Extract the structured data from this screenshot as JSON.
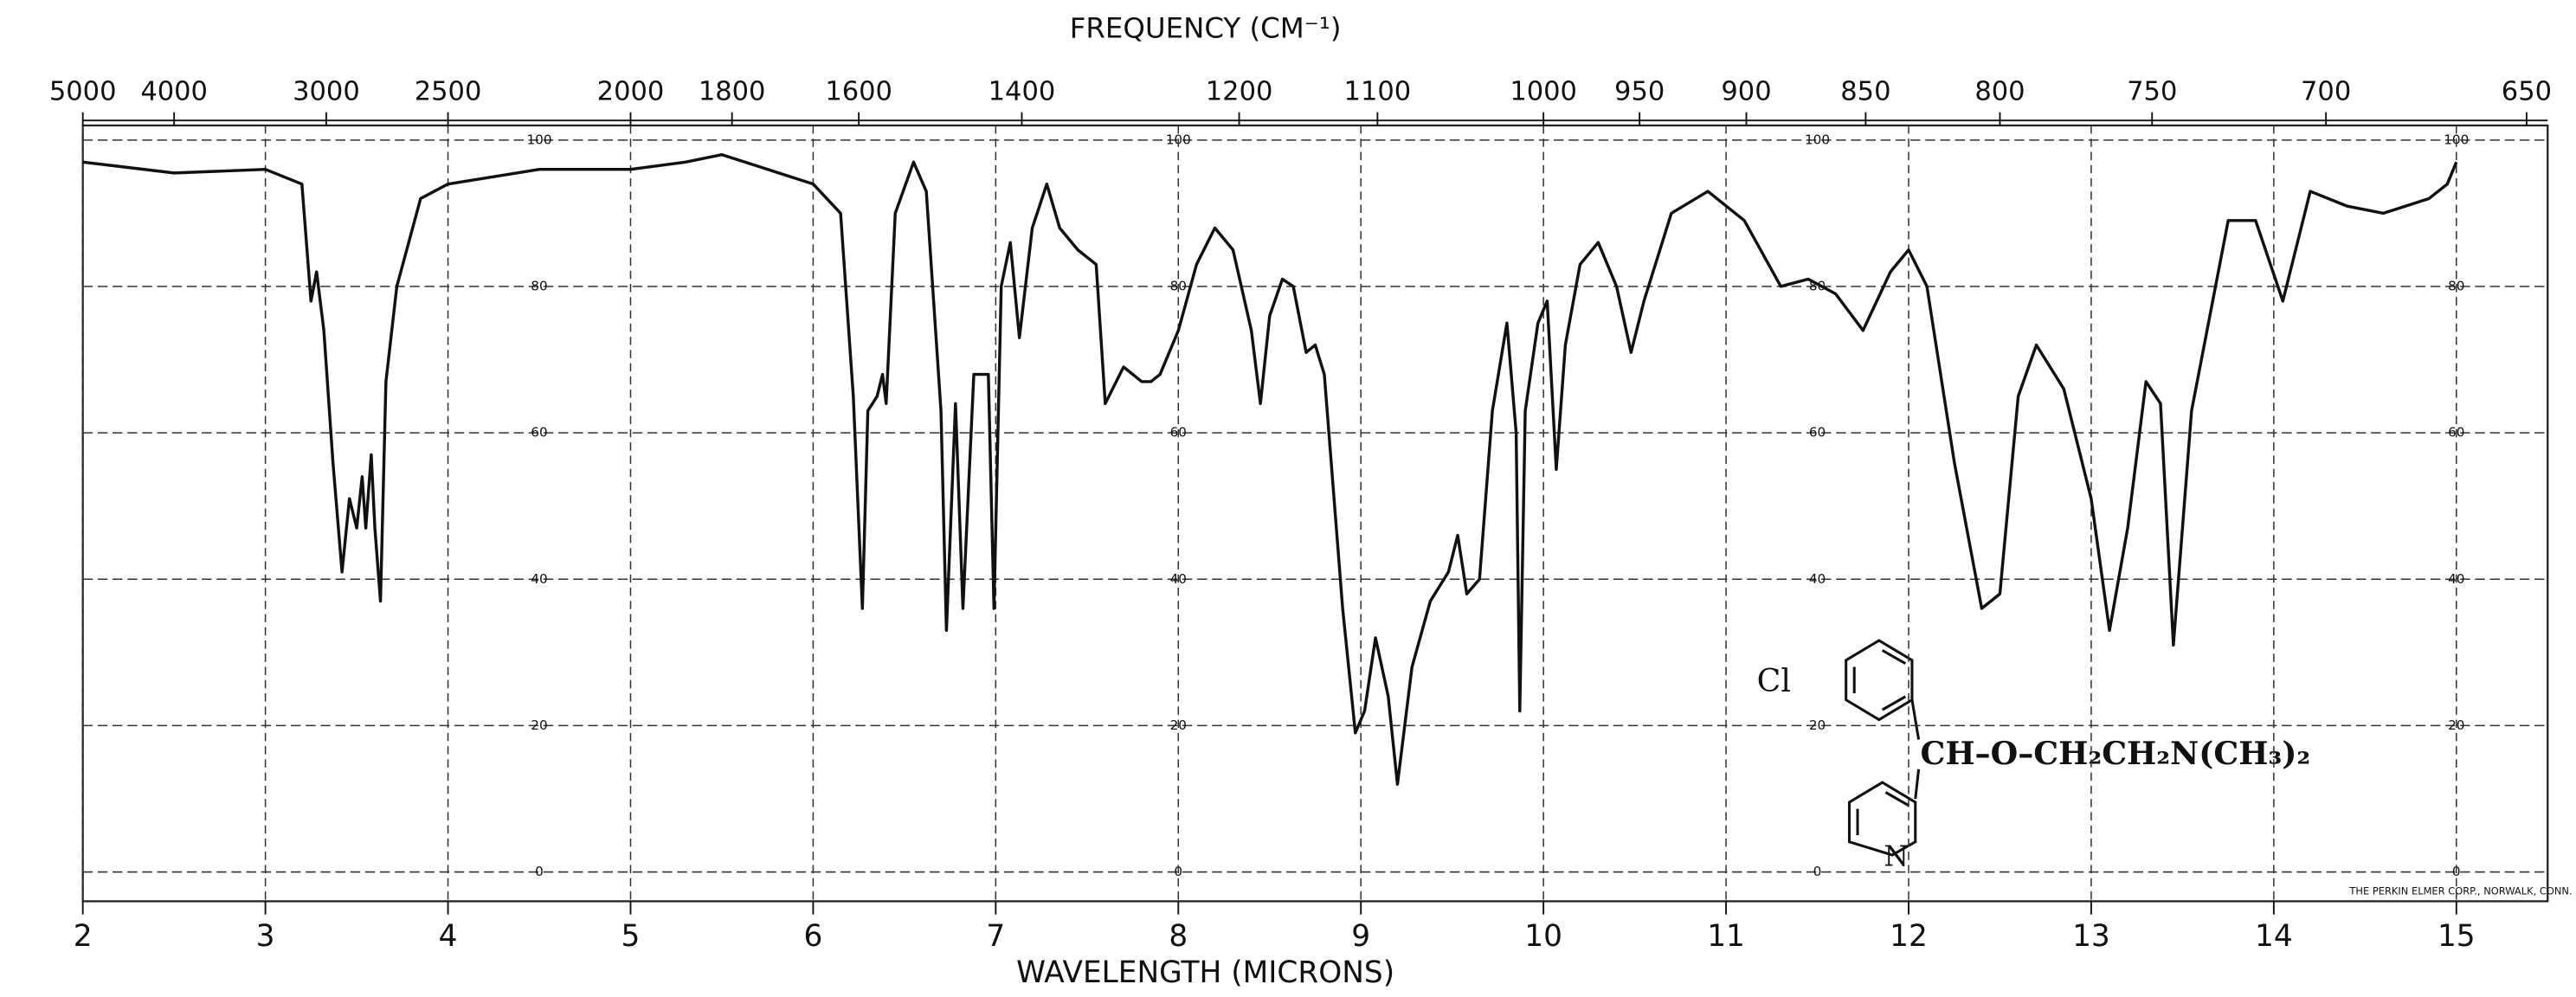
{
  "chart_data": {
    "type": "line",
    "title": "FREQUENCY (CM⁻¹)",
    "x_label": "WAVELENGTH (MICRONS)",
    "xlim": [
      2,
      15.5
    ],
    "xticks": [
      2,
      3,
      4,
      5,
      6,
      7,
      8,
      9,
      10,
      11,
      12,
      13,
      14,
      15
    ],
    "x2lim": [
      5000,
      645.2
    ],
    "x2ticks": [
      5000,
      4000,
      3000,
      2500,
      2000,
      1800,
      1600,
      1400,
      1200,
      1100,
      1000,
      950,
      900,
      850,
      800,
      750,
      700,
      650
    ],
    "ylim": [
      -4,
      102
    ],
    "yticks": [
      0,
      20,
      40,
      60,
      80,
      100
    ],
    "grid": true,
    "x": [
      2.0,
      2.5,
      3.0,
      3.2,
      3.25,
      3.28,
      3.32,
      3.37,
      3.42,
      3.46,
      3.5,
      3.53,
      3.55,
      3.58,
      3.6,
      3.63,
      3.66,
      3.72,
      3.85,
      4.0,
      4.5,
      5.0,
      5.3,
      5.5,
      6.0,
      6.15,
      6.22,
      6.27,
      6.3,
      6.35,
      6.38,
      6.4,
      6.45,
      6.55,
      6.62,
      6.7,
      6.73,
      6.78,
      6.82,
      6.88,
      6.96,
      6.99,
      7.03,
      7.08,
      7.13,
      7.2,
      7.28,
      7.35,
      7.45,
      7.55,
      7.6,
      7.7,
      7.8,
      7.85,
      7.9,
      8.0,
      8.1,
      8.2,
      8.3,
      8.4,
      8.45,
      8.5,
      8.57,
      8.63,
      8.7,
      8.75,
      8.8,
      8.9,
      8.97,
      9.02,
      9.08,
      9.15,
      9.2,
      9.28,
      9.38,
      9.48,
      9.53,
      9.58,
      9.65,
      9.72,
      9.8,
      9.85,
      9.87,
      9.9,
      9.97,
      10.02,
      10.07,
      10.12,
      10.2,
      10.3,
      10.4,
      10.48,
      10.55,
      10.7,
      10.9,
      11.1,
      11.3,
      11.45,
      11.6,
      11.75,
      11.9,
      12.0,
      12.1,
      12.25,
      12.4,
      12.5,
      12.6,
      12.7,
      12.85,
      13.0,
      13.1,
      13.2,
      13.3,
      13.38,
      13.45,
      13.55,
      13.75,
      13.9,
      14.05,
      14.2,
      14.4,
      14.6,
      14.85,
      14.95,
      15.0
    ],
    "series": [
      {
        "color": "#111111",
        "values": [
          97,
          95.5,
          96,
          94,
          78,
          82,
          74,
          56,
          41,
          51,
          47,
          54,
          47,
          57,
          47,
          37,
          67,
          80,
          92,
          94,
          96,
          96,
          97,
          98,
          94,
          90,
          65,
          36,
          63,
          65,
          68,
          64,
          90,
          97,
          93,
          63,
          33,
          64,
          36,
          68,
          68,
          36,
          80,
          86,
          73,
          88,
          94,
          88,
          85,
          83,
          64,
          69,
          67,
          67,
          68,
          74,
          83,
          88,
          85,
          74,
          64,
          76,
          81,
          80,
          71,
          72,
          68,
          36,
          19,
          22,
          32,
          24,
          12,
          28,
          37,
          41,
          46,
          38,
          40,
          63,
          75,
          60,
          22,
          63,
          75,
          78,
          55,
          72,
          83,
          86,
          80,
          71,
          78,
          90,
          93,
          89,
          80,
          81,
          79,
          74,
          82,
          85,
          80,
          56,
          36,
          38,
          65,
          72,
          66,
          51,
          33,
          47,
          67,
          64,
          31,
          63,
          89,
          89,
          78,
          93,
          91,
          90,
          92,
          94,
          97
        ]
      }
    ],
    "annotations": [
      "THE PERKIN ELMER CORP., NORWALK, CONN.",
      "Cl",
      "CH–O–CH₂CH₂N(CH₃)₂",
      "N"
    ]
  }
}
